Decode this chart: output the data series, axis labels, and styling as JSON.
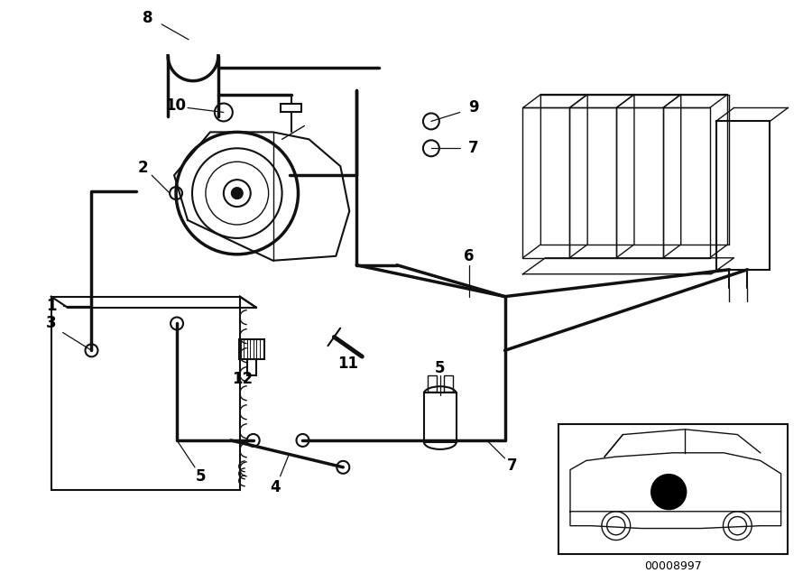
{
  "bg_color": "#ffffff",
  "line_color": "#111111",
  "label_color": "#000000",
  "figsize": [
    9.0,
    6.35
  ],
  "dpi": 100,
  "lw_pipe": 2.5,
  "lw_body": 1.5,
  "lw_thin": 1.0
}
